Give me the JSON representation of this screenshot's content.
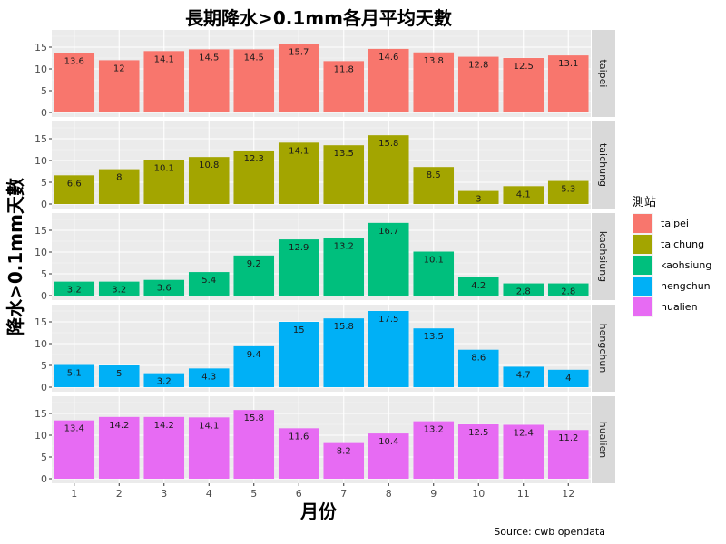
{
  "chart_data": {
    "type": "bar",
    "title": "長期降水>0.1mm各月平均天數",
    "xlabel": "月份",
    "ylabel": "降水>0.1mm天數",
    "caption": "Source: cwb opendata",
    "legend_title": "測站",
    "legend_position": "right",
    "grid": true,
    "facet": "rows",
    "x": [
      1,
      2,
      3,
      4,
      5,
      6,
      7,
      8,
      9,
      10,
      11,
      12
    ],
    "y_ticks": [
      0,
      5,
      10,
      15
    ],
    "ylim": [
      0,
      17.5
    ],
    "series": [
      {
        "name": "taipei",
        "color": "#F8766D",
        "values": [
          13.6,
          12,
          14.1,
          14.5,
          14.5,
          15.7,
          11.8,
          14.6,
          13.8,
          12.8,
          12.5,
          13.1
        ]
      },
      {
        "name": "taichung",
        "color": "#A3A500",
        "values": [
          6.6,
          8,
          10.1,
          10.8,
          12.3,
          14.1,
          13.5,
          15.8,
          8.5,
          3,
          4.1,
          5.3
        ]
      },
      {
        "name": "kaohsiung",
        "color": "#00BF7D",
        "values": [
          3.2,
          3.2,
          3.6,
          5.4,
          9.2,
          12.9,
          13.2,
          16.7,
          10.1,
          4.2,
          2.8,
          2.8
        ]
      },
      {
        "name": "hengchun",
        "color": "#00B0F6",
        "values": [
          5.1,
          5,
          3.2,
          4.3,
          9.4,
          15,
          15.8,
          17.5,
          13.5,
          8.6,
          4.7,
          4
        ]
      },
      {
        "name": "hualien",
        "color": "#E76BF3",
        "values": [
          13.4,
          14.2,
          14.2,
          14.1,
          15.8,
          11.6,
          8.2,
          10.4,
          13.2,
          12.5,
          12.4,
          11.2
        ]
      }
    ]
  }
}
